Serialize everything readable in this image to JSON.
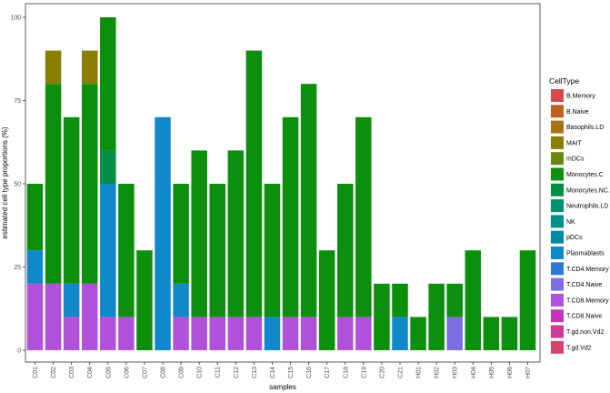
{
  "chart_data": {
    "type": "bar",
    "stacked": true,
    "xlabel": "samples",
    "ylabel": "estimated cell type proportions (%)",
    "ylim": [
      0,
      100
    ],
    "yticks": [
      0,
      25,
      50,
      75,
      100
    ],
    "grid": false,
    "legend": {
      "title": "CellType",
      "placement": "right"
    },
    "categories": [
      "C01",
      "C02",
      "C03",
      "C04",
      "C05",
      "C06",
      "C07",
      "C08",
      "C09",
      "C10",
      "C11",
      "C12",
      "C13",
      "C14",
      "C15",
      "C16",
      "C17",
      "C18",
      "C19",
      "C20",
      "C21",
      "H01",
      "H02",
      "H03",
      "H04",
      "H05",
      "H06",
      "H07"
    ],
    "series": [
      {
        "name": "B.Memory",
        "color": "#d34b4b",
        "values": [
          0,
          0,
          0,
          0,
          0,
          0,
          0,
          0,
          0,
          0,
          0,
          0,
          0,
          0,
          0,
          0,
          0,
          0,
          0,
          0,
          0,
          0,
          0,
          0,
          0,
          0,
          0,
          0
        ]
      },
      {
        "name": "B.Naive",
        "color": "#c0621c",
        "values": [
          0,
          0,
          0,
          0,
          0,
          0,
          0,
          0,
          0,
          0,
          0,
          0,
          0,
          0,
          0,
          0,
          0,
          0,
          0,
          0,
          0,
          0,
          0,
          0,
          0,
          0,
          0,
          0
        ]
      },
      {
        "name": "Basophils.LD",
        "color": "#a97312",
        "values": [
          0,
          0,
          0,
          0,
          0,
          0,
          0,
          0,
          0,
          0,
          0,
          0,
          0,
          0,
          0,
          0,
          0,
          0,
          0,
          0,
          0,
          0,
          0,
          0,
          0,
          0,
          0,
          0
        ]
      },
      {
        "name": "MAIT",
        "color": "#8b7d00",
        "values": [
          0,
          10,
          0,
          10,
          0,
          0,
          0,
          0,
          0,
          0,
          0,
          0,
          0,
          0,
          0,
          0,
          0,
          0,
          0,
          0,
          0,
          0,
          0,
          0,
          0,
          0,
          0,
          0
        ]
      },
      {
        "name": "mDCs",
        "color": "#6a8712",
        "values": [
          0,
          0,
          0,
          0,
          0,
          0,
          0,
          0,
          0,
          0,
          0,
          0,
          0,
          0,
          0,
          0,
          0,
          0,
          0,
          0,
          0,
          0,
          0,
          0,
          0,
          0,
          0,
          0
        ]
      },
      {
        "name": "Monocytes.C",
        "color": "#0c8f0c",
        "values": [
          20,
          60,
          50,
          60,
          40,
          40,
          30,
          0,
          30,
          50,
          40,
          50,
          80,
          40,
          60,
          70,
          30,
          40,
          60,
          20,
          10,
          10,
          20,
          10,
          30,
          10,
          10,
          30
        ]
      },
      {
        "name": "Monocytes.NC.I",
        "color": "#058f46",
        "values": [
          0,
          0,
          0,
          0,
          10,
          0,
          0,
          0,
          0,
          0,
          0,
          0,
          0,
          0,
          0,
          0,
          0,
          0,
          0,
          0,
          0,
          0,
          0,
          0,
          0,
          0,
          0,
          0
        ]
      },
      {
        "name": "Neutrophils.LD",
        "color": "#00906c",
        "values": [
          0,
          0,
          0,
          0,
          0,
          0,
          0,
          0,
          0,
          0,
          0,
          0,
          0,
          0,
          0,
          0,
          0,
          0,
          0,
          0,
          0,
          0,
          0,
          0,
          0,
          0,
          0,
          0
        ]
      },
      {
        "name": "NK",
        "color": "#008f8a",
        "values": [
          0,
          0,
          0,
          0,
          0,
          0,
          0,
          0,
          0,
          0,
          0,
          0,
          0,
          0,
          0,
          0,
          0,
          0,
          0,
          0,
          0,
          0,
          0,
          0,
          0,
          0,
          0,
          0
        ]
      },
      {
        "name": "pDCs",
        "color": "#008aa6",
        "values": [
          0,
          0,
          0,
          0,
          0,
          0,
          0,
          0,
          0,
          0,
          0,
          0,
          0,
          0,
          0,
          0,
          0,
          0,
          0,
          0,
          0,
          0,
          0,
          0,
          0,
          0,
          0,
          0
        ]
      },
      {
        "name": "Plasmablasts",
        "color": "#1188c9",
        "values": [
          10,
          0,
          10,
          0,
          40,
          0,
          0,
          70,
          10,
          0,
          0,
          0,
          0,
          10,
          0,
          0,
          0,
          0,
          0,
          0,
          10,
          0,
          0,
          0,
          0,
          0,
          0,
          0
        ]
      },
      {
        "name": "T.CD4.Memory",
        "color": "#2f78d6",
        "values": [
          0,
          0,
          0,
          0,
          0,
          0,
          0,
          0,
          0,
          0,
          0,
          0,
          0,
          0,
          0,
          0,
          0,
          0,
          0,
          0,
          0,
          0,
          0,
          0,
          0,
          0,
          0,
          0
        ]
      },
      {
        "name": "T.CD4.Naive",
        "color": "#7b6ee3",
        "values": [
          0,
          0,
          0,
          0,
          0,
          0,
          0,
          0,
          0,
          0,
          0,
          0,
          0,
          0,
          0,
          0,
          0,
          0,
          0,
          0,
          0,
          0,
          0,
          10,
          0,
          0,
          0,
          0
        ]
      },
      {
        "name": "T.CD8.Memory",
        "color": "#b052d9",
        "values": [
          20,
          20,
          10,
          20,
          10,
          10,
          0,
          0,
          10,
          10,
          10,
          10,
          10,
          0,
          10,
          10,
          0,
          10,
          10,
          0,
          0,
          0,
          0,
          0,
          0,
          0,
          0,
          0
        ]
      },
      {
        "name": "T.CD8.Naive",
        "color": "#c437bd",
        "values": [
          0,
          0,
          0,
          0,
          0,
          0,
          0,
          0,
          0,
          0,
          0,
          0,
          0,
          0,
          0,
          0,
          0,
          0,
          0,
          0,
          0,
          0,
          0,
          0,
          0,
          0,
          0,
          0
        ]
      },
      {
        "name": "T.gd.non.Vd2",
        "color": "#cf3a98",
        "values": [
          0,
          0,
          0,
          0,
          0,
          0,
          0,
          0,
          0,
          0,
          0,
          0,
          0,
          0,
          0,
          0,
          0,
          0,
          0,
          0,
          0,
          0,
          0,
          0,
          0,
          0,
          0,
          0
        ]
      },
      {
        "name": "T.gd.Vd2",
        "color": "#d5446f",
        "values": [
          0,
          0,
          0,
          0,
          0,
          0,
          0,
          0,
          0,
          0,
          0,
          0,
          0,
          0,
          0,
          0,
          0,
          0,
          0,
          0,
          0,
          0,
          0,
          0,
          0,
          0,
          0,
          0
        ]
      }
    ]
  }
}
